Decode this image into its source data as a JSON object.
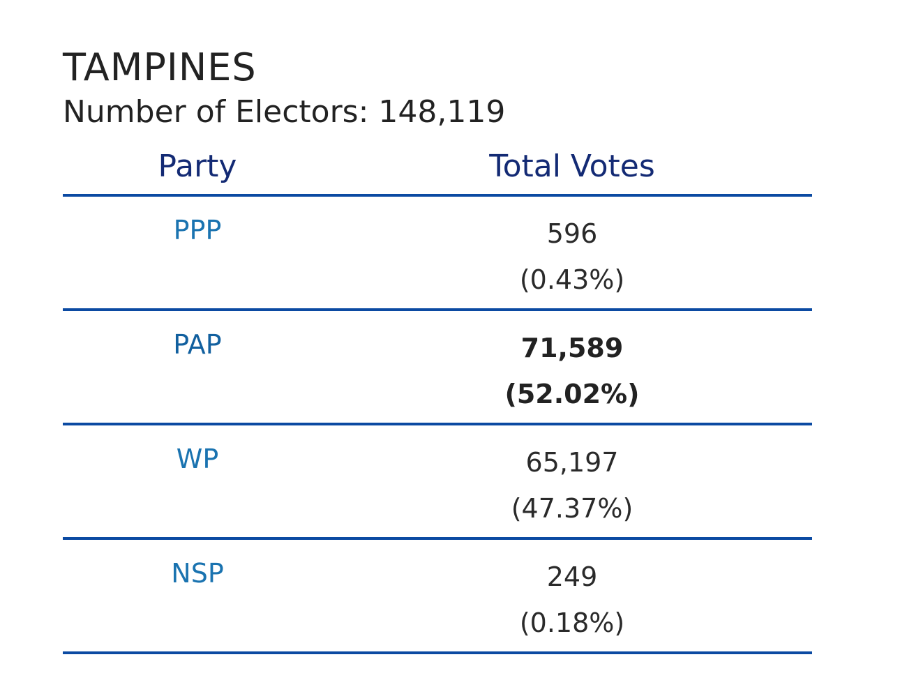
{
  "constituency": {
    "name": "TAMPINES",
    "electors_label": "Number of Electors: 148,119"
  },
  "table": {
    "headers": {
      "party": "Party",
      "votes": "Total Votes"
    },
    "rows": [
      {
        "party": "PPP",
        "votes": "596",
        "percent": "(0.43%)",
        "winner": false
      },
      {
        "party": "PAP",
        "votes": "71,589",
        "percent": "(52.02%)",
        "winner": true
      },
      {
        "party": "WP",
        "votes": "65,197",
        "percent": "(47.37%)",
        "winner": false
      },
      {
        "party": "NSP",
        "votes": "249",
        "percent": "(0.18%)",
        "winner": false
      }
    ]
  },
  "colors": {
    "divider": "#0b4aa2",
    "header_text": "#132a74",
    "party_text": "#1a73b0"
  }
}
